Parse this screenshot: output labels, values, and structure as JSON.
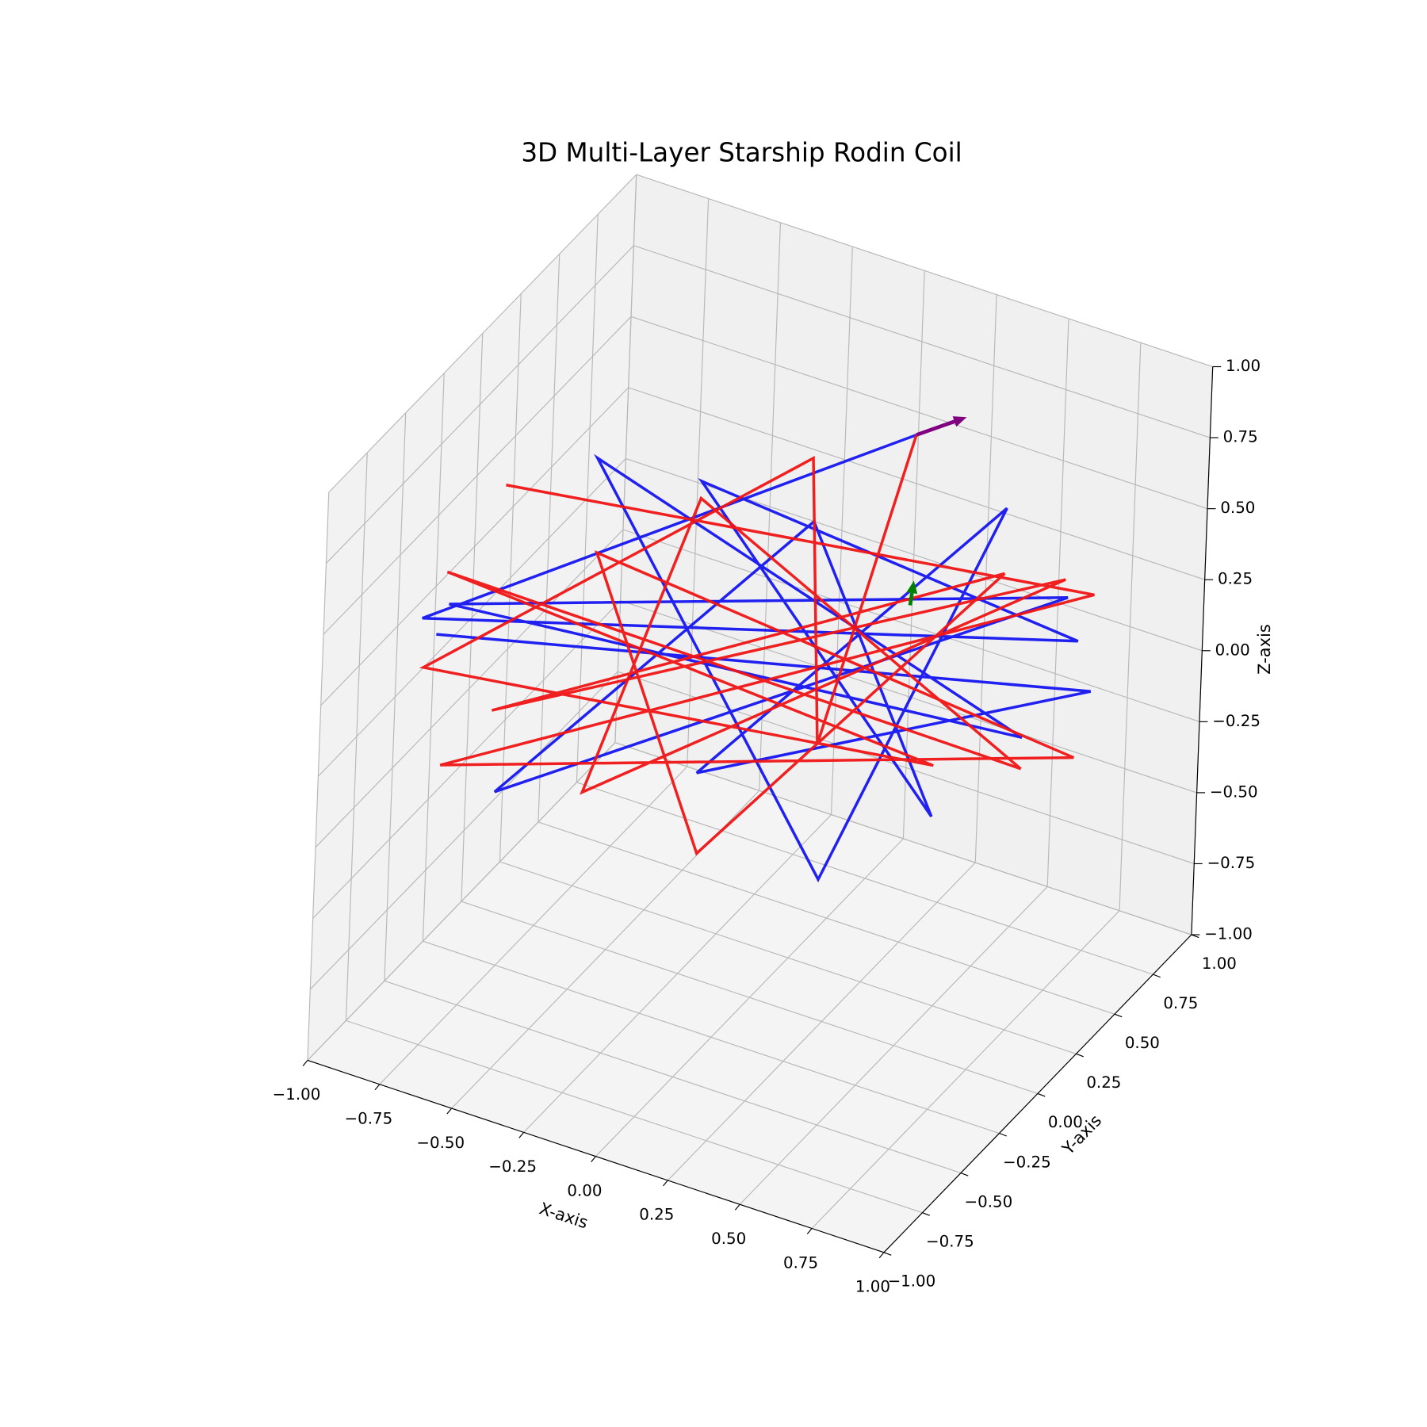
{
  "chart_data": {
    "type": "line3d",
    "title": "3D Multi-Layer Starship Rodin Coil",
    "xlabel": "X-axis",
    "ylabel": "Y-axis",
    "zlabel": "Z-axis",
    "xlim": [
      -1,
      1
    ],
    "ylim": [
      -1,
      1
    ],
    "zlim": [
      -1,
      1
    ],
    "xticks": [
      {
        "value": -1,
        "label": "−1.00"
      },
      {
        "value": -0.75,
        "label": "−0.75"
      },
      {
        "value": -0.5,
        "label": "−0.50"
      },
      {
        "value": -0.25,
        "label": "−0.25"
      },
      {
        "value": 0,
        "label": "0.00"
      },
      {
        "value": 0.25,
        "label": "0.25"
      },
      {
        "value": 0.5,
        "label": "0.50"
      },
      {
        "value": 0.75,
        "label": "0.75"
      },
      {
        "value": 1,
        "label": "1.00"
      }
    ],
    "yticks": [
      {
        "value": -1,
        "label": "−1.00"
      },
      {
        "value": -0.75,
        "label": "−0.75"
      },
      {
        "value": -0.5,
        "label": "−0.50"
      },
      {
        "value": -0.25,
        "label": "−0.25"
      },
      {
        "value": 0,
        "label": "0.00"
      },
      {
        "value": 0.25,
        "label": "0.25"
      },
      {
        "value": 0.5,
        "label": "0.50"
      },
      {
        "value": 0.75,
        "label": "0.75"
      },
      {
        "value": 1,
        "label": "1.00"
      }
    ],
    "zticks": [
      {
        "value": -1,
        "label": "−1.00"
      },
      {
        "value": -0.75,
        "label": "−0.75"
      },
      {
        "value": -0.5,
        "label": "−0.50"
      },
      {
        "value": -0.25,
        "label": "−0.25"
      },
      {
        "value": 0,
        "label": "0.00"
      },
      {
        "value": 0.25,
        "label": "0.25"
      },
      {
        "value": 0.5,
        "label": "0.50"
      },
      {
        "value": 0.75,
        "label": "0.75"
      },
      {
        "value": 1,
        "label": "1.00"
      }
    ],
    "grid": true,
    "series": [
      {
        "color": "#1414f0",
        "x": [
          0.5,
          -1.17,
          1.08,
          -0.23,
          0.6,
          0.16,
          -0.9,
          1.04,
          -1.08,
          0.9,
          -0.59,
          0.22,
          0.82,
          -0.21,
          1.13,
          -1.12
        ],
        "y": [
          0,
          0,
          0,
          0,
          0,
          0,
          0,
          0,
          0,
          0,
          0,
          0,
          0,
          0,
          0,
          0
        ],
        "z": [
          1.15,
          -0.06,
          0.62,
          0.74,
          -0.16,
          0.73,
          -0.58,
          0.76,
          0.02,
          0.22,
          0.7,
          -0.51,
          1.0,
          -0.28,
          0.46,
          -0.1
        ]
      },
      {
        "color": "#f01414",
        "x": [
          -0.9,
          1.13,
          -1.09,
          1.08,
          -0.58,
          -0.2,
          0.82,
          -0.92,
          1.03,
          -0.6,
          -0.23,
          0.9,
          -1.09,
          0.6,
          -1.16,
          0.15,
          0.2,
          0.5
        ],
        "y": [
          0,
          0,
          0,
          0,
          0,
          0,
          0,
          0,
          0,
          0,
          0,
          0,
          0,
          0,
          0,
          0,
          0,
          0
        ],
        "z": [
          0.5,
          0.8,
          -0.55,
          0.21,
          0.37,
          -0.56,
          0.77,
          -0.3,
          0.82,
          -0.48,
          0.68,
          0.11,
          0.13,
          0.02,
          -0.23,
          0.95,
          -0.04,
          1.15
        ]
      }
    ],
    "arrows": [
      {
        "color": "purple",
        "start": [
          0.5,
          0,
          1.15
        ],
        "vector": [
          0.17,
          0,
          0.12
        ]
      },
      {
        "color": "green",
        "start": [
          0.5,
          0,
          0.55
        ],
        "vector": [
          0.01,
          0,
          0.09
        ]
      }
    ]
  }
}
